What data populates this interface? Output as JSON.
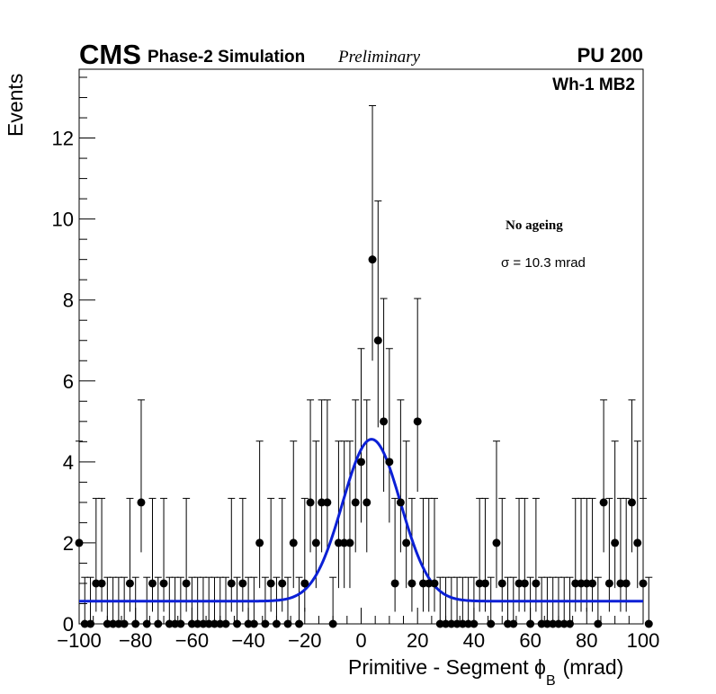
{
  "chart_data": {
    "type": "scatter",
    "title_logo": "CMS",
    "title_sub": "Phase-2 Simulation",
    "title_status": "Preliminary",
    "pileup": "PU 200",
    "region": "Wh-1 MB2",
    "legend_label": "No ageing",
    "sigma_text": "σ = 10.3 mrad",
    "xlabel_main": "Primitive - Segment ϕ",
    "xlabel_sub": "B",
    "xlabel_unit": "(mrad)",
    "ylabel": "Events",
    "xlim": [
      -100,
      100
    ],
    "ylim": [
      0,
      13.7
    ],
    "x_ticks": [
      -100,
      -80,
      -60,
      -40,
      -20,
      0,
      20,
      40,
      60,
      80,
      100
    ],
    "x_tick_labels": [
      "−100",
      "−80",
      "−60",
      "−40",
      "−20",
      "0",
      "20",
      "40",
      "60",
      "80",
      "100"
    ],
    "y_ticks": [
      0,
      2,
      4,
      6,
      8,
      10,
      12
    ],
    "y_tick_labels": [
      "0",
      "2",
      "4",
      "6",
      "8",
      "10",
      "12"
    ],
    "bin_width": 2,
    "bin_start": -100,
    "values": [
      2,
      0,
      0,
      1,
      1,
      0,
      0,
      0,
      0,
      1,
      0,
      3,
      0,
      1,
      0,
      1,
      0,
      0,
      0,
      1,
      0,
      0,
      0,
      0,
      0,
      0,
      0,
      1,
      0,
      1,
      0,
      0,
      2,
      0,
      1,
      0,
      1,
      0,
      2,
      0,
      1,
      3,
      2,
      3,
      3,
      0,
      2,
      2,
      2,
      3,
      4,
      3,
      9,
      7,
      5,
      4,
      1,
      3,
      2,
      1,
      5,
      1,
      1,
      1,
      0,
      0,
      0,
      0,
      0,
      0,
      0,
      1,
      1,
      0,
      2,
      1,
      0,
      0,
      1,
      1,
      0,
      1,
      0,
      0,
      0,
      0,
      0,
      0,
      1,
      1,
      1,
      1,
      0,
      3,
      1,
      2,
      1,
      1,
      3,
      2,
      1,
      0
    ],
    "fit": {
      "name": "Gaussian + constant",
      "color": "#0b20d6",
      "mean": 3.7,
      "sigma": 10.3,
      "amplitude": 4.0,
      "baseline_start": 0.56,
      "baseline_end": 0.56
    },
    "marker_color": "#000000"
  }
}
